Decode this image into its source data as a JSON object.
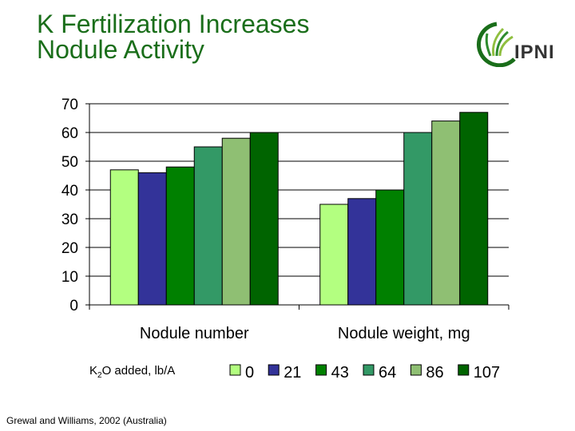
{
  "title_line1": "K Fertilization Increases",
  "title_line2": "Nodule Activity",
  "logo": {
    "text": "IPNI"
  },
  "legend_title": {
    "prefix": "K",
    "sub": "2",
    "suffix": "O added,  lb/A"
  },
  "source": "Grewal and Williams, 2002 (Australia)",
  "colors": {
    "title": "#1a6e1a",
    "grid": "#000000"
  },
  "chart_data": {
    "type": "bar",
    "title": "K Fertilization Increases Nodule Activity",
    "xlabel": "",
    "ylabel": "",
    "ylim": [
      0,
      70
    ],
    "yticks": [
      0,
      10,
      20,
      30,
      40,
      50,
      60,
      70
    ],
    "categories": [
      "Nodule number",
      "Nodule weight, mg"
    ],
    "legend_position": "bottom",
    "grid": true,
    "series": [
      {
        "name": "0",
        "color": "#b3ff80",
        "values": [
          47,
          35
        ]
      },
      {
        "name": "21",
        "color": "#333399",
        "values": [
          46,
          37
        ]
      },
      {
        "name": "43",
        "color": "#008000",
        "values": [
          48,
          40
        ]
      },
      {
        "name": "64",
        "color": "#339966",
        "values": [
          55,
          60
        ]
      },
      {
        "name": "86",
        "color": "#8fbf73",
        "values": [
          58,
          64
        ]
      },
      {
        "name": "107",
        "color": "#006400",
        "values": [
          60,
          67
        ]
      }
    ]
  }
}
